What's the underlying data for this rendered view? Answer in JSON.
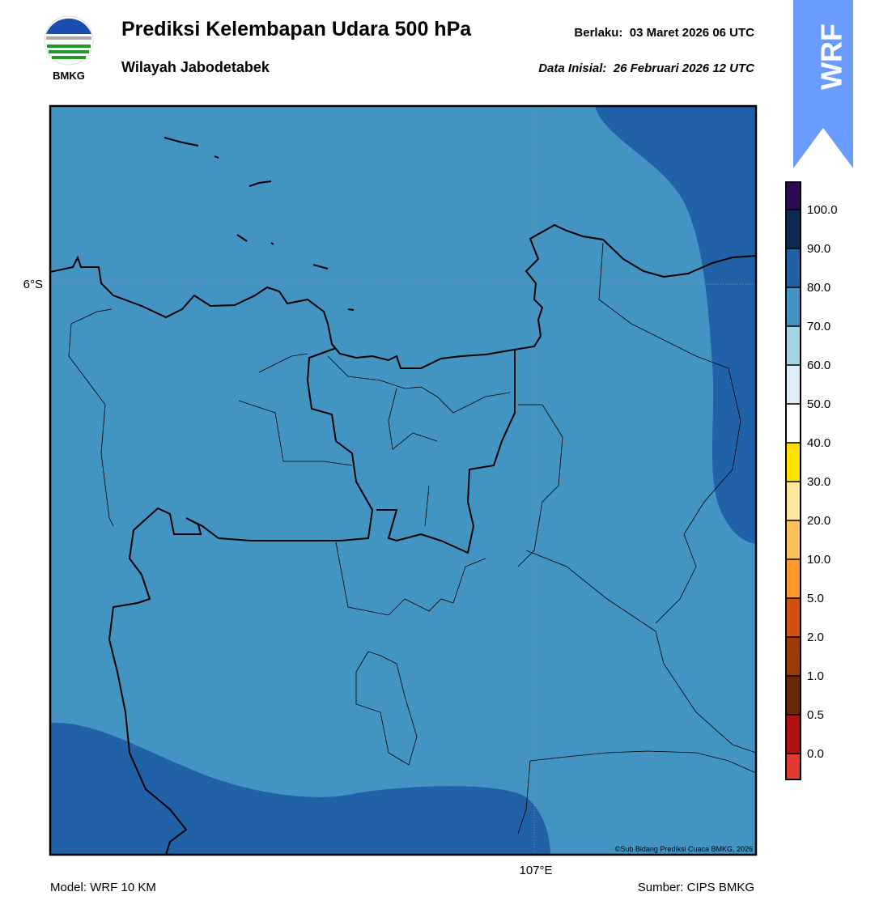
{
  "header": {
    "logo_text": "BMKG",
    "title": "Prediksi Kelembapan Udara 500 hPa",
    "subtitle": "Wilayah Jabodetabek",
    "valid": "Berlaku:  03 Maret 2026 06 UTC",
    "init": "Data Inisial:  26 Februari 2026 12 UTC",
    "badge": "WRF"
  },
  "map": {
    "lat_label": "6°S",
    "lon_label": "107°E",
    "credit": "©Sub Bidang Prediksi Cuaca BMKG, 2026"
  },
  "colorbar": {
    "colors": [
      "#2d0a52",
      "#0b2a52",
      "#2061a8",
      "#4393c3",
      "#a6d4e6",
      "#dfedf7",
      "#ffffff",
      "#ffe100",
      "#fee8a0",
      "#fdc35a",
      "#fd9a2a",
      "#d4500e",
      "#9c3a08",
      "#6a2808",
      "#b01212",
      "#e23a30"
    ],
    "labels": [
      "100.0",
      "90.0",
      "80.0",
      "70.0",
      "60.0",
      "50.0",
      "40.0",
      "30.0",
      "20.0",
      "10.0",
      "5.0",
      "2.0",
      "1.0",
      "0.5",
      "0.0"
    ]
  },
  "footer": {
    "model": "Model: WRF 10 KM",
    "source": "Sumber: CIPS BMKG"
  }
}
